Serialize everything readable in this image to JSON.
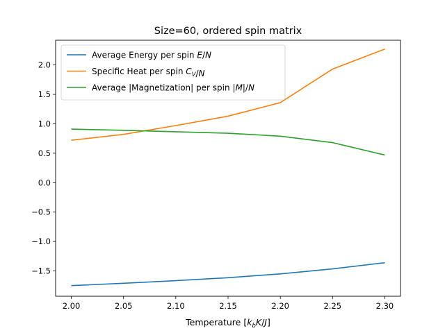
{
  "chart_data": {
    "type": "line",
    "title": "Size=60, ordered spin matrix",
    "xlabel": "Temperature [k_bK/J]",
    "ylabel": "",
    "x": [
      2.0,
      2.05,
      2.1,
      2.15,
      2.2,
      2.25,
      2.3
    ],
    "xlim": [
      1.985,
      2.315
    ],
    "ylim": [
      -1.93,
      2.42
    ],
    "x_ticks": [
      2.0,
      2.05,
      2.1,
      2.15,
      2.2,
      2.25,
      2.3
    ],
    "x_tick_labels": [
      "2.00",
      "2.05",
      "2.10",
      "2.15",
      "2.20",
      "2.25",
      "2.30"
    ],
    "y_ticks": [
      -1.5,
      -1.0,
      -0.5,
      0.0,
      0.5,
      1.0,
      1.5,
      2.0
    ],
    "y_tick_labels": [
      "−1.5",
      "−1.0",
      "−0.5",
      "0.0",
      "0.5",
      "1.0",
      "1.5",
      "2.0"
    ],
    "grid": false,
    "legend_position": "top-left",
    "series": [
      {
        "name": "Average Energy per spin E/N",
        "color": "#1f77b4",
        "values": [
          -1.75,
          -1.71,
          -1.665,
          -1.615,
          -1.55,
          -1.465,
          -1.36
        ]
      },
      {
        "name": "Specific Heat per spin C_V/N",
        "color": "#ff7f0e",
        "values": [
          0.72,
          0.82,
          0.97,
          1.13,
          1.36,
          1.93,
          2.27
        ]
      },
      {
        "name": "Average |Magnetization| per spin |M|/N",
        "color": "#2ca02c",
        "values": [
          0.91,
          0.89,
          0.865,
          0.84,
          0.79,
          0.68,
          0.47
        ]
      }
    ]
  }
}
